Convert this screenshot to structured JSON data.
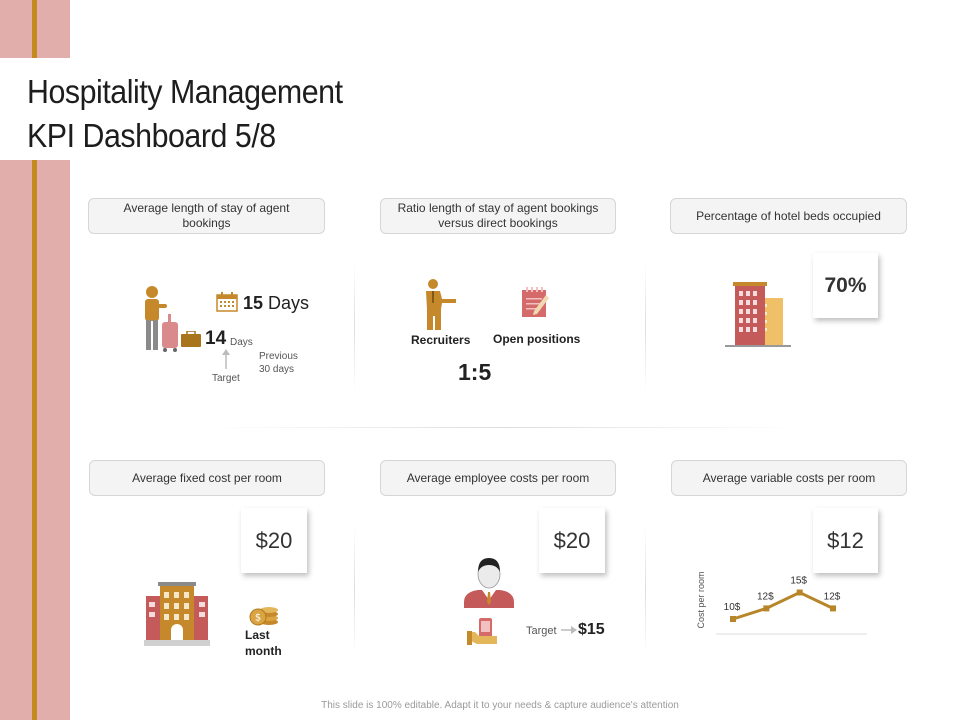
{
  "title_line1": "Hospitality Management",
  "title_line2": "KPI Dashboard 5/8",
  "kpis": {
    "stay": {
      "label": "Average length of stay of agent bookings",
      "current_value": "15",
      "current_unit": "Days",
      "target_value": "14",
      "target_unit": "Days",
      "target_label": "Target",
      "previous_label": "Previous 30 days"
    },
    "ratio": {
      "label": "Ratio length of stay of agent bookings versus direct bookings",
      "recruiters_label": "Recruiters",
      "positions_label": "Open positions",
      "ratio_value": "1:5"
    },
    "beds": {
      "label": "Percentage of hotel beds occupied",
      "value": "70%"
    },
    "fixed_cost": {
      "label": "Average fixed cost per room",
      "value": "$20",
      "period_label": "Last month"
    },
    "employee_cost": {
      "label": "Average employee costs per room",
      "value": "$20",
      "target_label": "Target",
      "target_value": "$15"
    },
    "variable_cost": {
      "label": "Average variable costs per room",
      "value": "$12"
    }
  },
  "chart_data": {
    "type": "line",
    "ylabel": "Cost per room",
    "x": [
      1,
      2,
      3,
      4
    ],
    "values": [
      10,
      12,
      15,
      12
    ],
    "data_labels": [
      "10$",
      "12$",
      "15$",
      "12$"
    ],
    "ylim": [
      0,
      20
    ]
  },
  "footer": "This slide is 100% editable. Adapt it to your needs & capture audience's attention",
  "colors": {
    "accent_gold": "#c58a1e",
    "accent_pink": "#e2aeac",
    "building_red": "#c55a5a",
    "line_gold": "#b8862a"
  }
}
